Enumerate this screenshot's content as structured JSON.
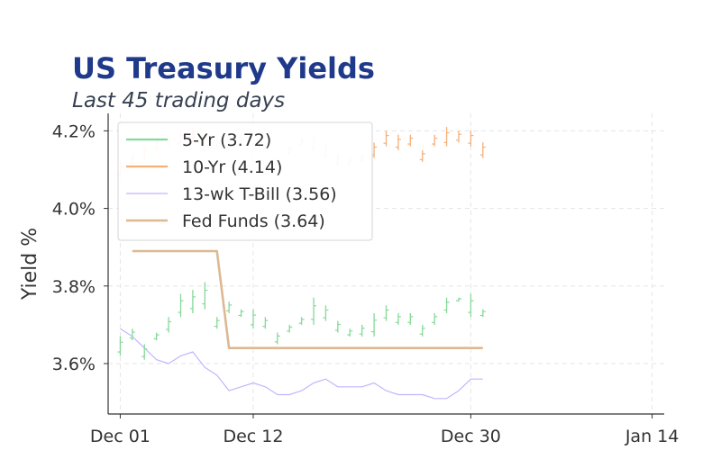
{
  "chart_data": {
    "type": "line",
    "title": "US Treasury Yields",
    "subtitle": "Last 45 trading days",
    "ylabel": "Yield %",
    "ylim": [
      3.47,
      4.245
    ],
    "xlim": [
      "2023-11-30",
      "2024-01-15"
    ],
    "grid": true,
    "legend_position": "top-left",
    "y_ticks": [
      {
        "value": 3.6,
        "label": "3.6%"
      },
      {
        "value": 3.8,
        "label": "3.8%"
      },
      {
        "value": 4.0,
        "label": "4.0%"
      },
      {
        "value": 4.2,
        "label": "4.2%"
      }
    ],
    "x_ticks": [
      {
        "date": "2023-12-01",
        "label": "Dec 01"
      },
      {
        "date": "2023-12-12",
        "label": "Dec 12"
      },
      {
        "date": "2023-12-30",
        "label": "Dec 30"
      },
      {
        "date": "2024-01-14",
        "label": "Jan 14"
      }
    ],
    "ohlc_series": [
      {
        "name": "5-Yr (3.72)",
        "color": "#86d99a",
        "points": [
          {
            "x": "2023-12-01",
            "low": 3.62,
            "high": 3.67
          },
          {
            "x": "2023-12-02",
            "low": 3.66,
            "high": 3.69
          },
          {
            "x": "2023-12-03",
            "low": 3.61,
            "high": 3.65
          },
          {
            "x": "2023-12-04",
            "low": 3.66,
            "high": 3.68
          },
          {
            "x": "2023-12-05",
            "low": 3.68,
            "high": 3.72
          },
          {
            "x": "2023-12-06",
            "low": 3.72,
            "high": 3.78
          },
          {
            "x": "2023-12-07",
            "low": 3.73,
            "high": 3.79
          },
          {
            "x": "2023-12-08",
            "low": 3.74,
            "high": 3.81
          },
          {
            "x": "2023-12-09",
            "low": 3.69,
            "high": 3.72
          },
          {
            "x": "2023-12-10",
            "low": 3.73,
            "high": 3.76
          },
          {
            "x": "2023-12-11",
            "low": 3.72,
            "high": 3.74
          },
          {
            "x": "2023-12-12",
            "low": 3.69,
            "high": 3.74
          },
          {
            "x": "2023-12-13",
            "low": 3.69,
            "high": 3.72
          },
          {
            "x": "2023-12-14",
            "low": 3.65,
            "high": 3.68
          },
          {
            "x": "2023-12-15",
            "low": 3.68,
            "high": 3.7
          },
          {
            "x": "2023-12-16",
            "low": 3.7,
            "high": 3.72
          },
          {
            "x": "2023-12-17",
            "low": 3.7,
            "high": 3.77
          },
          {
            "x": "2023-12-18",
            "low": 3.71,
            "high": 3.75
          },
          {
            "x": "2023-12-19",
            "low": 3.68,
            "high": 3.71
          },
          {
            "x": "2023-12-20",
            "low": 3.67,
            "high": 3.69
          },
          {
            "x": "2023-12-21",
            "low": 3.67,
            "high": 3.7
          },
          {
            "x": "2023-12-22",
            "low": 3.67,
            "high": 3.73
          },
          {
            "x": "2023-12-23",
            "low": 3.71,
            "high": 3.75
          },
          {
            "x": "2023-12-24",
            "low": 3.7,
            "high": 3.73
          },
          {
            "x": "2023-12-25",
            "low": 3.7,
            "high": 3.73
          },
          {
            "x": "2023-12-26",
            "low": 3.67,
            "high": 3.7
          },
          {
            "x": "2023-12-27",
            "low": 3.7,
            "high": 3.73
          },
          {
            "x": "2023-12-28",
            "low": 3.73,
            "high": 3.77
          },
          {
            "x": "2023-12-29",
            "low": 3.76,
            "high": 3.77
          },
          {
            "x": "2023-12-30",
            "low": 3.72,
            "high": 3.78
          },
          {
            "x": "2023-12-31",
            "low": 3.72,
            "high": 3.74
          }
        ]
      },
      {
        "name": "10-Yr (4.14)",
        "color": "#f5b07a",
        "points": [
          {
            "x": "2023-12-01",
            "low": 4.08,
            "high": 4.12
          },
          {
            "x": "2023-12-02",
            "low": 4.11,
            "high": 4.14
          },
          {
            "x": "2023-12-03",
            "low": 4.12,
            "high": 4.16
          },
          {
            "x": "2023-12-04",
            "low": 4.15,
            "high": 4.18
          },
          {
            "x": "2023-12-05",
            "low": 4.16,
            "high": 4.19
          },
          {
            "x": "2023-12-06",
            "low": 4.16,
            "high": 4.2
          },
          {
            "x": "2023-12-07",
            "low": 4.17,
            "high": 4.21
          },
          {
            "x": "2023-12-08",
            "low": 4.14,
            "high": 4.19
          },
          {
            "x": "2023-12-09",
            "low": 4.15,
            "high": 4.18
          },
          {
            "x": "2023-12-10",
            "low": 4.15,
            "high": 4.19
          },
          {
            "x": "2023-12-11",
            "low": 4.16,
            "high": 4.19
          },
          {
            "x": "2023-12-12",
            "low": 4.14,
            "high": 4.18
          },
          {
            "x": "2023-12-13",
            "low": 4.15,
            "high": 4.17
          },
          {
            "x": "2023-12-14",
            "low": 4.11,
            "high": 4.13
          },
          {
            "x": "2023-12-15",
            "low": 4.14,
            "high": 4.16
          },
          {
            "x": "2023-12-16",
            "low": 4.16,
            "high": 4.18
          },
          {
            "x": "2023-12-17",
            "low": 4.15,
            "high": 4.19
          },
          {
            "x": "2023-12-18",
            "low": 4.13,
            "high": 4.17
          },
          {
            "x": "2023-12-19",
            "low": 4.11,
            "high": 4.14
          },
          {
            "x": "2023-12-20",
            "low": 4.11,
            "high": 4.13
          },
          {
            "x": "2023-12-21",
            "low": 4.12,
            "high": 4.14
          },
          {
            "x": "2023-12-22",
            "low": 4.13,
            "high": 4.17
          },
          {
            "x": "2023-12-23",
            "low": 4.16,
            "high": 4.2
          },
          {
            "x": "2023-12-24",
            "low": 4.15,
            "high": 4.19
          },
          {
            "x": "2023-12-25",
            "low": 4.16,
            "high": 4.19
          },
          {
            "x": "2023-12-26",
            "low": 4.12,
            "high": 4.15
          },
          {
            "x": "2023-12-27",
            "low": 4.16,
            "high": 4.19
          },
          {
            "x": "2023-12-28",
            "low": 4.16,
            "high": 4.21
          },
          {
            "x": "2023-12-29",
            "low": 4.17,
            "high": 4.2
          },
          {
            "x": "2023-12-30",
            "low": 4.16,
            "high": 4.2
          },
          {
            "x": "2023-12-31",
            "low": 4.13,
            "high": 4.17
          }
        ]
      }
    ],
    "line_series": [
      {
        "name": "13-wk T-Bill (3.56)",
        "color": "#c4b5fd",
        "points": [
          {
            "x": "2023-12-01",
            "y": 3.69
          },
          {
            "x": "2023-12-02",
            "y": 3.67
          },
          {
            "x": "2023-12-03",
            "y": 3.64
          },
          {
            "x": "2023-12-04",
            "y": 3.61
          },
          {
            "x": "2023-12-05",
            "y": 3.6
          },
          {
            "x": "2023-12-06",
            "y": 3.62
          },
          {
            "x": "2023-12-07",
            "y": 3.63
          },
          {
            "x": "2023-12-08",
            "y": 3.59
          },
          {
            "x": "2023-12-09",
            "y": 3.57
          },
          {
            "x": "2023-12-10",
            "y": 3.53
          },
          {
            "x": "2023-12-11",
            "y": 3.54
          },
          {
            "x": "2023-12-12",
            "y": 3.55
          },
          {
            "x": "2023-12-13",
            "y": 3.54
          },
          {
            "x": "2023-12-14",
            "y": 3.52
          },
          {
            "x": "2023-12-15",
            "y": 3.52
          },
          {
            "x": "2023-12-16",
            "y": 3.53
          },
          {
            "x": "2023-12-17",
            "y": 3.55
          },
          {
            "x": "2023-12-18",
            "y": 3.56
          },
          {
            "x": "2023-12-19",
            "y": 3.54
          },
          {
            "x": "2023-12-20",
            "y": 3.54
          },
          {
            "x": "2023-12-21",
            "y": 3.54
          },
          {
            "x": "2023-12-22",
            "y": 3.55
          },
          {
            "x": "2023-12-23",
            "y": 3.53
          },
          {
            "x": "2023-12-24",
            "y": 3.52
          },
          {
            "x": "2023-12-25",
            "y": 3.52
          },
          {
            "x": "2023-12-26",
            "y": 3.52
          },
          {
            "x": "2023-12-27",
            "y": 3.51
          },
          {
            "x": "2023-12-28",
            "y": 3.51
          },
          {
            "x": "2023-12-29",
            "y": 3.53
          },
          {
            "x": "2023-12-30",
            "y": 3.56
          },
          {
            "x": "2023-12-31",
            "y": 3.56
          }
        ]
      },
      {
        "name": "Fed Funds (3.64)",
        "color": "#deb893",
        "points": [
          {
            "x": "2023-12-02",
            "y": 3.89
          },
          {
            "x": "2023-12-09",
            "y": 3.89
          },
          {
            "x": "2023-12-10",
            "y": 3.64
          },
          {
            "x": "2023-12-31",
            "y": 3.64
          }
        ]
      }
    ]
  }
}
